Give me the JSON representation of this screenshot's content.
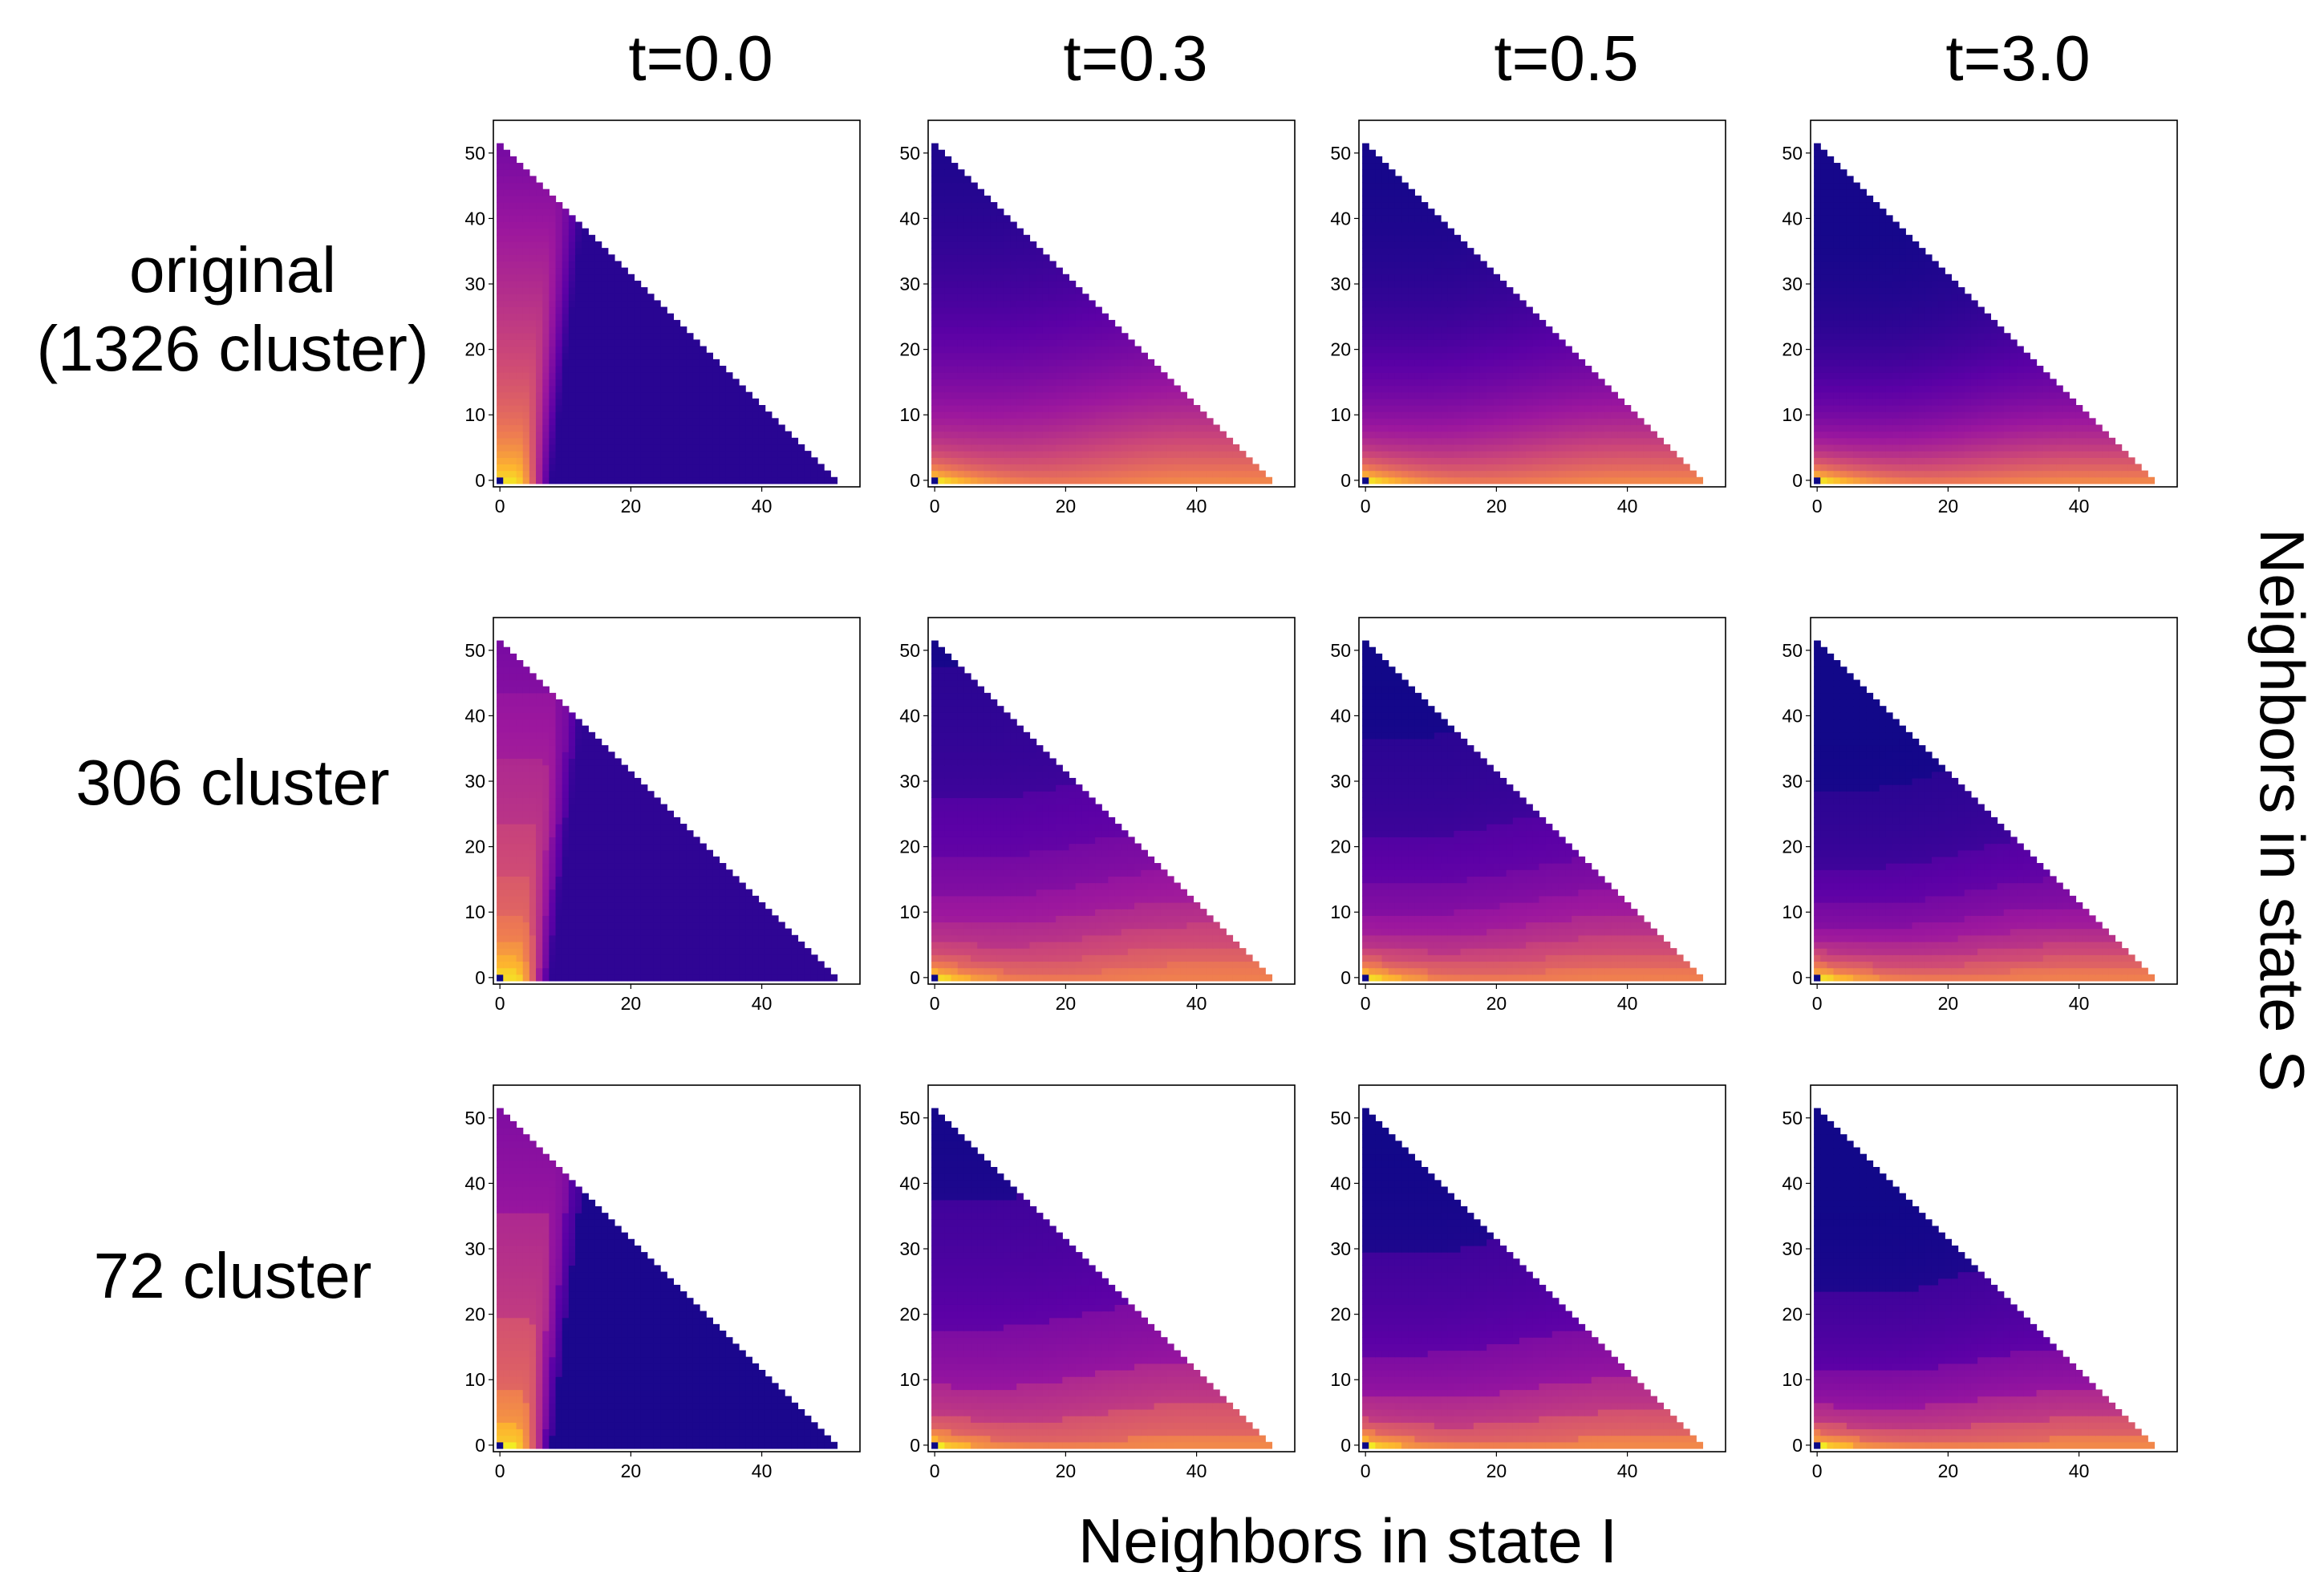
{
  "chart_data": {
    "type": "heatmap",
    "layout": "3x4 grid of triangular heatmaps",
    "xlabel": "Neighbors in state I",
    "ylabel": "Neighbors in state S",
    "ylabel_position": "right",
    "columns": [
      {
        "label": "t=0.0",
        "t": 0.0
      },
      {
        "label": "t=0.3",
        "t": 0.3
      },
      {
        "label": "t=0.5",
        "t": 0.5
      },
      {
        "label": "t=3.0",
        "t": 3.0
      }
    ],
    "rows": [
      {
        "label_lines": [
          "original",
          "(1326 cluster)"
        ],
        "clusters": 1326
      },
      {
        "label_lines": [
          "306 cluster"
        ],
        "clusters": 306
      },
      {
        "label_lines": [
          "72 cluster"
        ],
        "clusters": 72
      }
    ],
    "x_ticks": [
      0,
      20,
      40
    ],
    "y_ticks": [
      0,
      10,
      20,
      30,
      40,
      50
    ],
    "xlim": [
      -1,
      55
    ],
    "ylim": [
      -1,
      55
    ],
    "domain": "cells where I + S <= 51 (triangular region)",
    "colormap": "plasma",
    "colormap_stops": [
      "#0d0887",
      "#5c01a6",
      "#9c179e",
      "#cc4778",
      "#ed7953",
      "#fdb42f",
      "#f0f921"
    ],
    "grid": false,
    "legend": "none"
  }
}
